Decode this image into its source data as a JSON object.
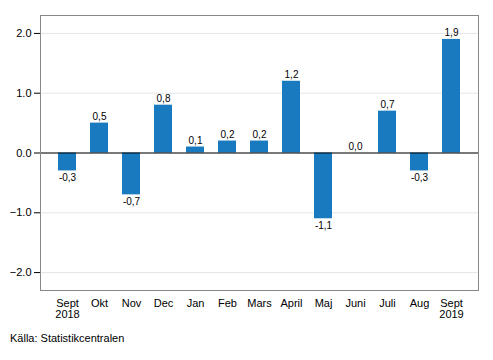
{
  "chart_data": {
    "type": "bar",
    "categories": [
      "Sept\n2018",
      "Okt",
      "Nov",
      "Dec",
      "Jan",
      "Feb",
      "Mars",
      "April",
      "Maj",
      "Juni",
      "Juli",
      "Aug",
      "Sept\n2019"
    ],
    "values": [
      -0.3,
      0.5,
      -0.7,
      0.8,
      0.1,
      0.2,
      0.2,
      1.2,
      -1.1,
      0.0,
      0.7,
      -0.3,
      1.9
    ],
    "value_labels": [
      "-0,3",
      "0,5",
      "-0,7",
      "0,8",
      "0,1",
      "0,2",
      "0,2",
      "1,2",
      "-1,1",
      "0,0",
      "0,7",
      "-0,3",
      "1,9"
    ],
    "data_labels": true,
    "color": "#1a7abf",
    "ylim": [
      -2.3,
      2.3
    ],
    "yticks": [
      -2,
      -1,
      0,
      1,
      2
    ],
    "grid": true,
    "source": "Källa: Statistikcentralen"
  }
}
